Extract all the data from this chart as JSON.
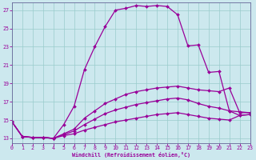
{
  "xlabel": "Windchill (Refroidissement éolien,°C)",
  "background_color": "#cce8ee",
  "grid_color": "#99cccc",
  "line_color": "#990099",
  "spine_color": "#666699",
  "xlim": [
    0,
    23
  ],
  "ylim": [
    12.5,
    27.8
  ],
  "xticks": [
    0,
    1,
    2,
    3,
    4,
    5,
    6,
    7,
    8,
    9,
    10,
    11,
    12,
    13,
    14,
    15,
    16,
    17,
    18,
    19,
    20,
    21,
    22,
    23
  ],
  "yticks": [
    13,
    15,
    17,
    19,
    21,
    23,
    25,
    27
  ],
  "series": [
    [
      14.8,
      13.2,
      13.1,
      13.1,
      13.0,
      14.5,
      16.5,
      20.5,
      23.0,
      25.2,
      27.0,
      27.2,
      27.5,
      27.4,
      27.5,
      27.4,
      26.5,
      23.1,
      23.2,
      20.2,
      20.3,
      16.0,
      15.9,
      15.8
    ],
    [
      14.8,
      13.2,
      13.1,
      13.1,
      13.0,
      13.5,
      14.0,
      15.2,
      16.0,
      16.8,
      17.3,
      17.8,
      18.1,
      18.3,
      18.5,
      18.6,
      18.7,
      18.5,
      18.3,
      18.2,
      18.1,
      18.5,
      15.8,
      15.8
    ],
    [
      14.8,
      13.2,
      13.1,
      13.1,
      13.0,
      13.4,
      13.8,
      14.5,
      15.1,
      15.7,
      16.1,
      16.4,
      16.7,
      16.9,
      17.1,
      17.3,
      17.4,
      17.2,
      16.8,
      16.5,
      16.3,
      16.0,
      15.5,
      15.6
    ],
    [
      14.8,
      13.2,
      13.1,
      13.1,
      13.0,
      13.3,
      13.5,
      13.9,
      14.2,
      14.5,
      14.8,
      15.0,
      15.2,
      15.4,
      15.6,
      15.7,
      15.8,
      15.6,
      15.4,
      15.2,
      15.1,
      15.0,
      15.5,
      15.6
    ]
  ]
}
